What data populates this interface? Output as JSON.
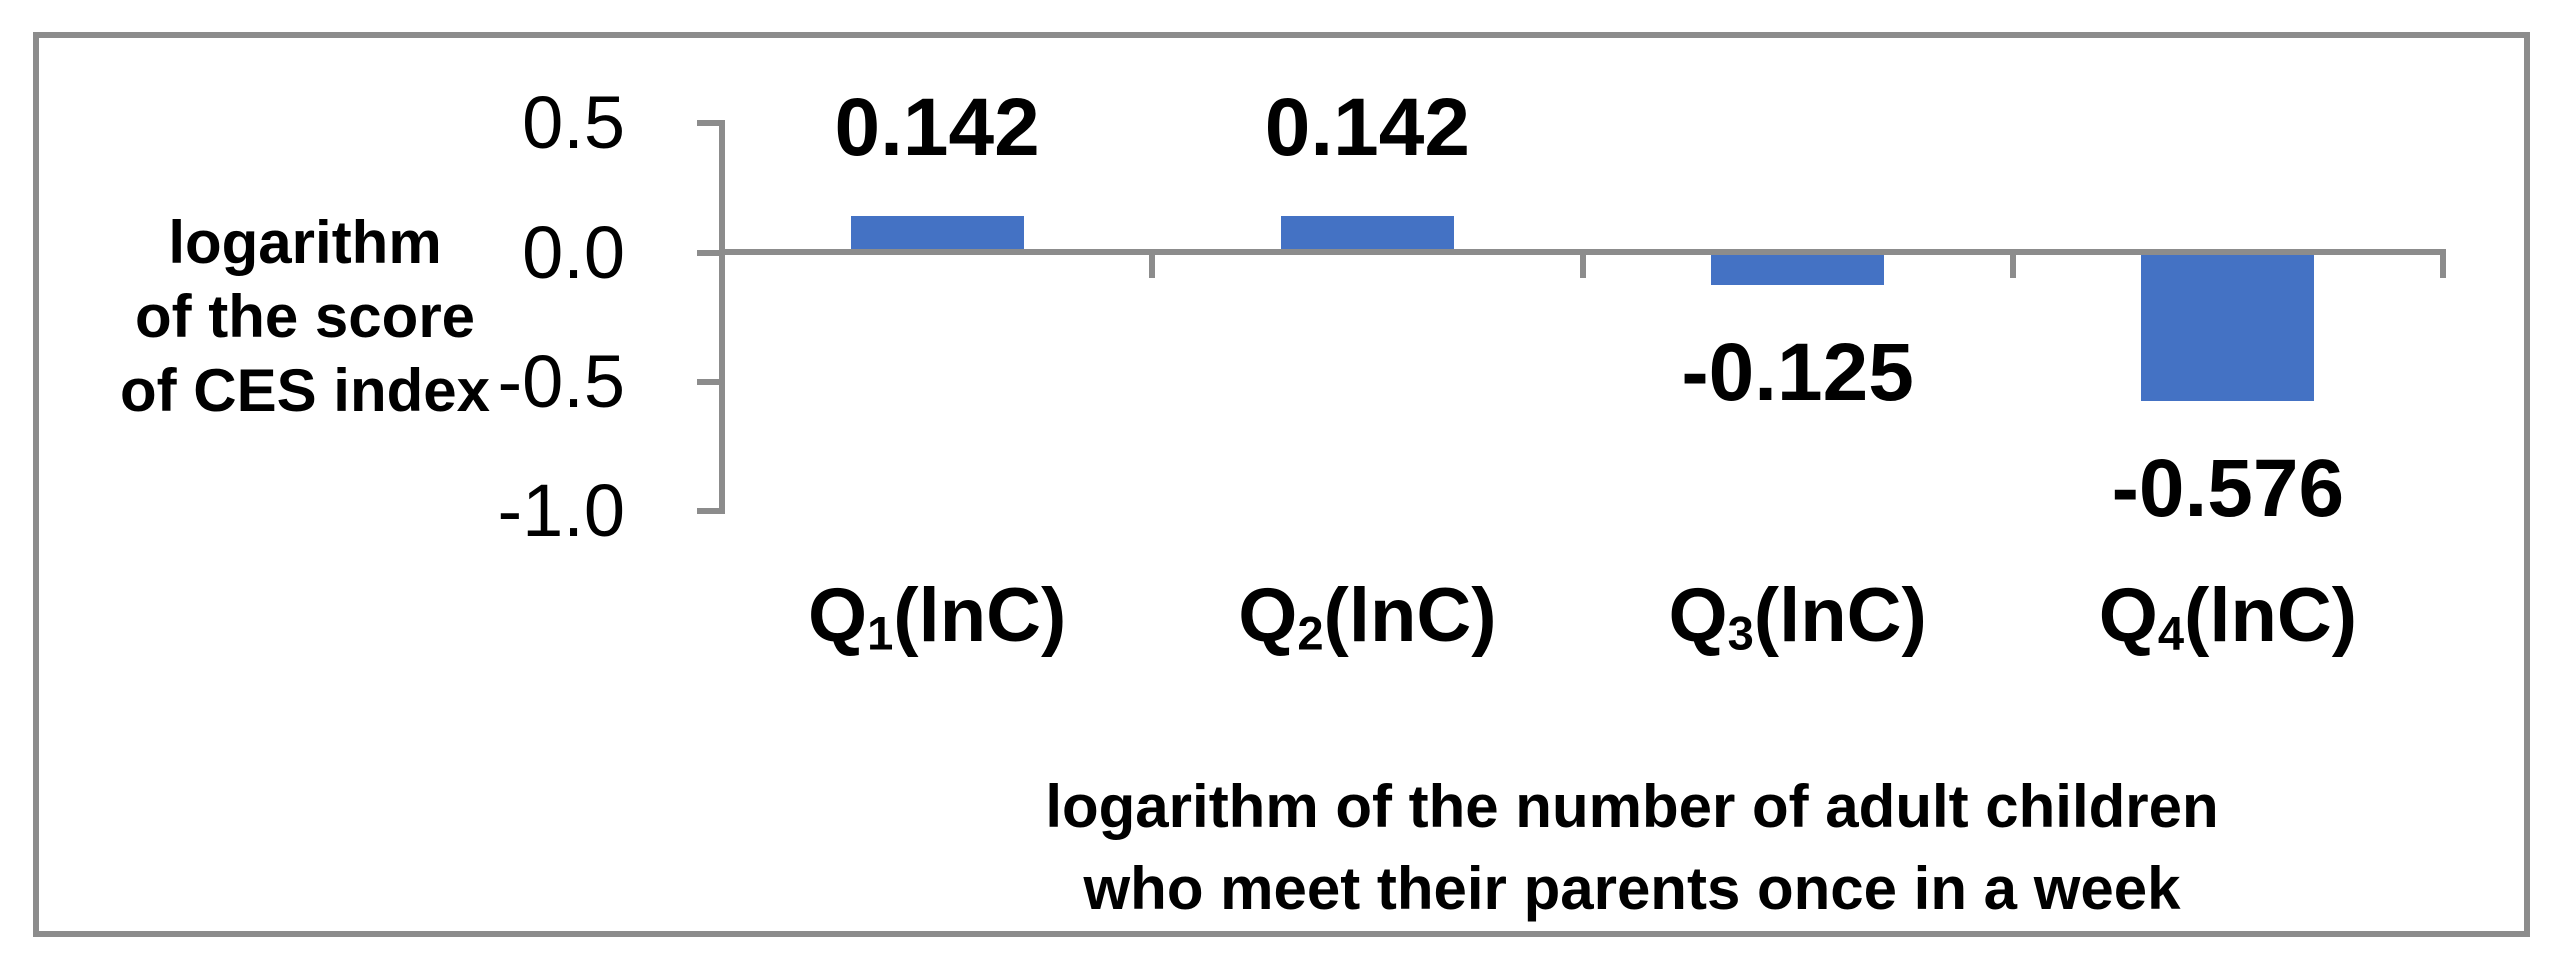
{
  "chart_data": {
    "type": "bar",
    "title": "",
    "categories": [
      {
        "prefix": "Q",
        "sub": "1",
        "suffix": "(lnC)"
      },
      {
        "prefix": "Q",
        "sub": "2",
        "suffix": "(lnC)"
      },
      {
        "prefix": "Q",
        "sub": "3",
        "suffix": "(lnC)"
      },
      {
        "prefix": "Q",
        "sub": "4",
        "suffix": "(lnC)"
      }
    ],
    "values": [
      0.142,
      0.142,
      -0.125,
      -0.576
    ],
    "data_labels": [
      "0.142",
      "0.142",
      "-0.125",
      "-0.576"
    ],
    "yticks": [
      {
        "label": "0.5",
        "value": 0.5
      },
      {
        "label": "0.0",
        "value": 0.0
      },
      {
        "label": "-0.5",
        "value": -0.5
      },
      {
        "label": "-1.0",
        "value": -1.0
      }
    ],
    "ylim": [
      -1.0,
      0.5
    ],
    "ylabel_lines": [
      "logarithm",
      "of the score",
      "of CES index"
    ],
    "xlabel_lines": [
      "logarithm of the number of adult children",
      "who meet their parents once in a week"
    ],
    "grid": false,
    "legend": false,
    "colors": {
      "bar": "#4472C4",
      "axis": "#8C8C8C",
      "frame": "#8C8C8C",
      "text": "#000000"
    }
  }
}
